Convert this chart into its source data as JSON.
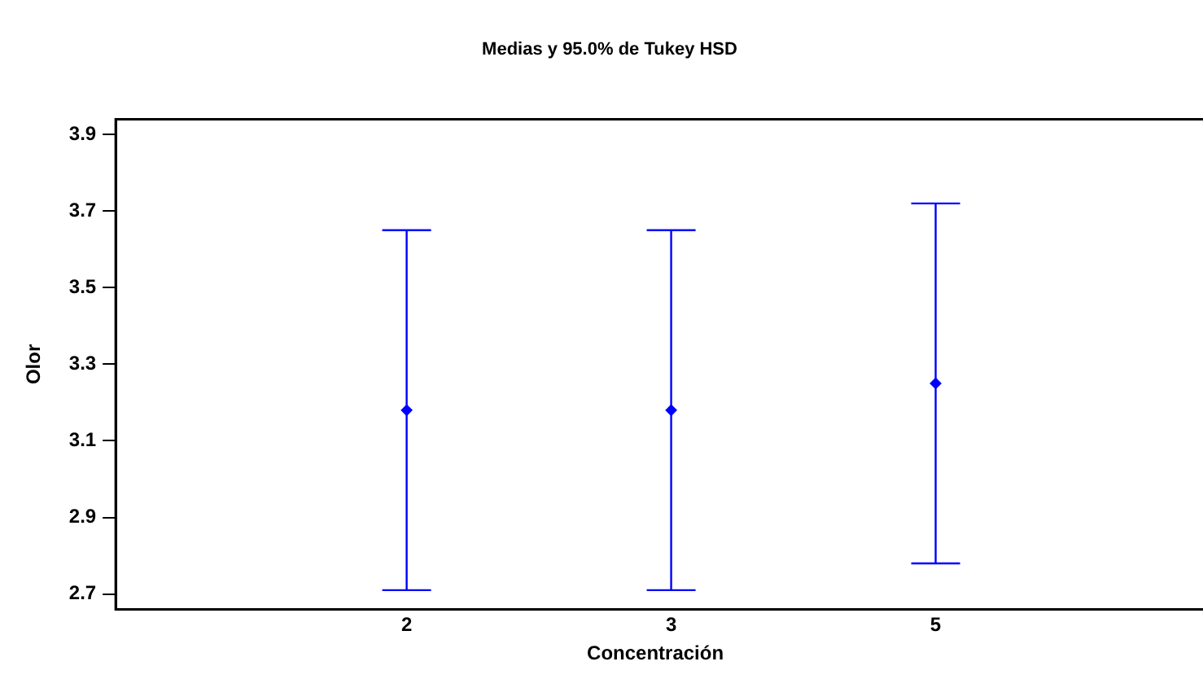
{
  "chart_data": {
    "type": "scatter",
    "title": "Medias y 95.0% de Tukey HSD",
    "xlabel": "Concentración",
    "ylabel": "Olor",
    "categories": [
      "2",
      "3",
      "5"
    ],
    "values": [
      3.18,
      3.18,
      3.25
    ],
    "errors": [
      0.47,
      0.47,
      0.47
    ],
    "color": "#0000ff",
    "ylim": [
      2.66,
      3.94
    ],
    "yticks": [
      2.7,
      2.9,
      3.1,
      3.3,
      3.5,
      3.7,
      3.9
    ],
    "grid": false,
    "legend": false,
    "marker": "diamond"
  }
}
